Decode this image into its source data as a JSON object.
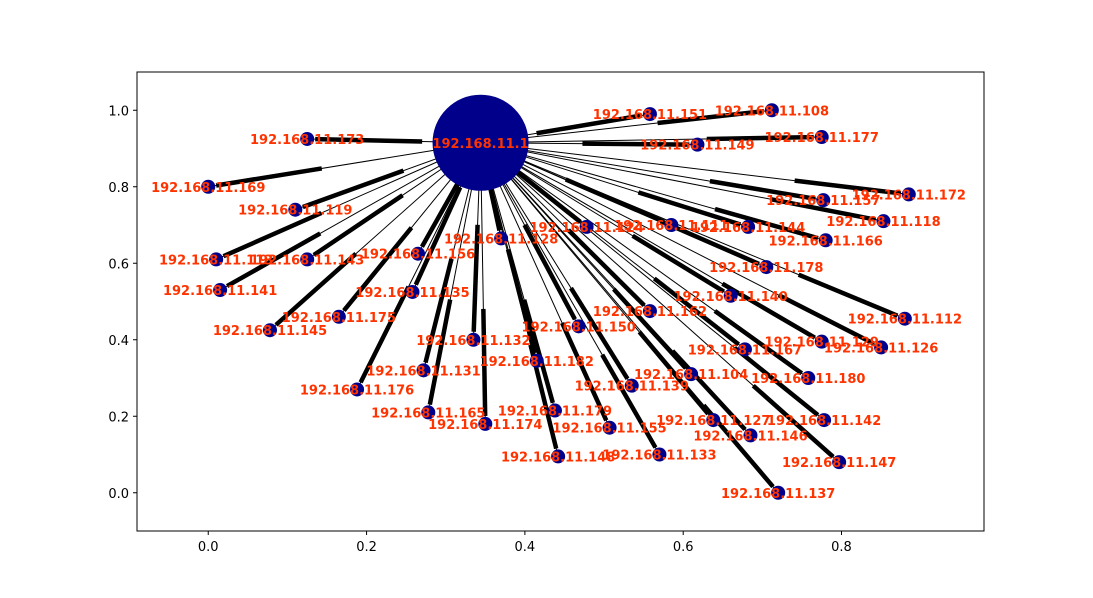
{
  "chart_data": {
    "type": "scatter",
    "title": "",
    "xlabel": "",
    "ylabel": "",
    "xlim": [
      -0.09,
      0.98
    ],
    "ylim": [
      -0.1,
      1.1
    ],
    "xticks": [
      0.0,
      0.2,
      0.4,
      0.6,
      0.8
    ],
    "yticks": [
      0.0,
      0.2,
      0.4,
      0.6,
      0.8,
      1.0
    ],
    "xtick_labels": [
      "0.0",
      "0.2",
      "0.4",
      "0.6",
      "0.8"
    ],
    "ytick_labels": [
      "0.0",
      "0.2",
      "0.4",
      "0.6",
      "0.8",
      "1.0"
    ],
    "grid": false,
    "node_color": "#00008b",
    "edge_color": "#000000",
    "label_color": "#ff3300",
    "hub": {
      "label": "192.168.11.1",
      "x": 0.344,
      "y": 0.915
    },
    "nodes": [
      {
        "label": "192.168.11.173",
        "x": 0.125,
        "y": 0.925
      },
      {
        "label": "192.168.11.169",
        "x": 0.0,
        "y": 0.8
      },
      {
        "label": "192.168.11.119",
        "x": 0.11,
        "y": 0.74
      },
      {
        "label": "192.168.11.113",
        "x": 0.01,
        "y": 0.61
      },
      {
        "label": "192.168.11.143",
        "x": 0.125,
        "y": 0.61
      },
      {
        "label": "192.168.11.141",
        "x": 0.015,
        "y": 0.53
      },
      {
        "label": "192.168.11.145",
        "x": 0.078,
        "y": 0.425
      },
      {
        "label": "192.168.11.175",
        "x": 0.165,
        "y": 0.46
      },
      {
        "label": "192.168.11.156",
        "x": 0.265,
        "y": 0.625
      },
      {
        "label": "192.168.11.135",
        "x": 0.258,
        "y": 0.525
      },
      {
        "label": "192.168.11.176",
        "x": 0.188,
        "y": 0.27
      },
      {
        "label": "192.168.11.131",
        "x": 0.272,
        "y": 0.32
      },
      {
        "label": "192.168.11.132",
        "x": 0.335,
        "y": 0.4
      },
      {
        "label": "192.168.11.165",
        "x": 0.278,
        "y": 0.21
      },
      {
        "label": "192.168.11.174",
        "x": 0.35,
        "y": 0.18
      },
      {
        "label": "192.168.11.128",
        "x": 0.37,
        "y": 0.665
      },
      {
        "label": "192.168.11.182",
        "x": 0.415,
        "y": 0.345
      },
      {
        "label": "192.168.11.179",
        "x": 0.438,
        "y": 0.215
      },
      {
        "label": "192.168.11.148",
        "x": 0.442,
        "y": 0.095
      },
      {
        "label": "192.168.11.150",
        "x": 0.468,
        "y": 0.435
      },
      {
        "label": "192.168.11.124",
        "x": 0.478,
        "y": 0.695
      },
      {
        "label": "192.168.11.155",
        "x": 0.507,
        "y": 0.17
      },
      {
        "label": "192.168.11.139",
        "x": 0.535,
        "y": 0.28
      },
      {
        "label": "192.168.11.162",
        "x": 0.558,
        "y": 0.475
      },
      {
        "label": "192.168.11.133",
        "x": 0.57,
        "y": 0.1
      },
      {
        "label": "192.168.11.151",
        "x": 0.558,
        "y": 0.99
      },
      {
        "label": "192.168.11.149",
        "x": 0.618,
        "y": 0.91
      },
      {
        "label": "192.168.11.111",
        "x": 0.585,
        "y": 0.7
      },
      {
        "label": "192.168.11.104",
        "x": 0.61,
        "y": 0.31
      },
      {
        "label": "192.168.11.127",
        "x": 0.638,
        "y": 0.19
      },
      {
        "label": "192.168.11.140",
        "x": 0.66,
        "y": 0.515
      },
      {
        "label": "192.168.11.167",
        "x": 0.678,
        "y": 0.375
      },
      {
        "label": "192.168.11.146",
        "x": 0.685,
        "y": 0.15
      },
      {
        "label": "192.168.11.144",
        "x": 0.682,
        "y": 0.695
      },
      {
        "label": "192.168.11.178",
        "x": 0.705,
        "y": 0.59
      },
      {
        "label": "192.168.11.108",
        "x": 0.712,
        "y": 1.0
      },
      {
        "label": "192.168.11.137",
        "x": 0.72,
        "y": 0.0
      },
      {
        "label": "192.168.11.177",
        "x": 0.775,
        "y": 0.93
      },
      {
        "label": "192.168.11.157",
        "x": 0.777,
        "y": 0.765
      },
      {
        "label": "192.168.11.166",
        "x": 0.78,
        "y": 0.66
      },
      {
        "label": "192.168.11.180",
        "x": 0.758,
        "y": 0.3
      },
      {
        "label": "192.168.11.142",
        "x": 0.778,
        "y": 0.19
      },
      {
        "label": "192.168.11.129",
        "x": 0.775,
        "y": 0.395
      },
      {
        "label": "192.168.11.147",
        "x": 0.797,
        "y": 0.08
      },
      {
        "label": "192.168.11.126",
        "x": 0.85,
        "y": 0.38
      },
      {
        "label": "192.168.11.118",
        "x": 0.853,
        "y": 0.71
      },
      {
        "label": "192.168.11.172",
        "x": 0.885,
        "y": 0.78
      },
      {
        "label": "192.168.11.112",
        "x": 0.88,
        "y": 0.455
      }
    ]
  }
}
